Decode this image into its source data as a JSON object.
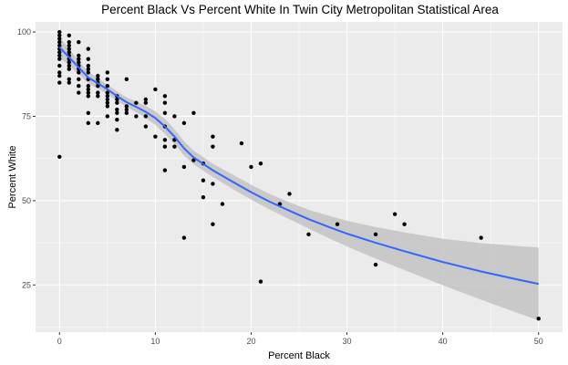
{
  "chart_data": {
    "type": "scatter",
    "title": "Percent Black Vs Percent White In Twin City Metropolitan Statistical Area",
    "xlabel": "Percent Black",
    "ylabel": "Percent White",
    "xlim": [
      -2.5,
      52.5
    ],
    "ylim": [
      11,
      103
    ],
    "x_ticks": [
      0,
      10,
      20,
      30,
      40,
      50
    ],
    "y_ticks": [
      25,
      50,
      75,
      100
    ],
    "grid": true,
    "colors": {
      "panel": "#ebebeb",
      "grid_major": "#ffffff",
      "point": "#000000",
      "smooth_line": "#3366ff",
      "ci_band": "#c3c3c3"
    },
    "points": [
      [
        0,
        100
      ],
      [
        0,
        99
      ],
      [
        0,
        98
      ],
      [
        0,
        97
      ],
      [
        0,
        96
      ],
      [
        0,
        95
      ],
      [
        0,
        94
      ],
      [
        0,
        93
      ],
      [
        0,
        92
      ],
      [
        0,
        90
      ],
      [
        0,
        88
      ],
      [
        0,
        87
      ],
      [
        0,
        85
      ],
      [
        0,
        63
      ],
      [
        1,
        99
      ],
      [
        1,
        97
      ],
      [
        1,
        96
      ],
      [
        1,
        95
      ],
      [
        1,
        94
      ],
      [
        1,
        93
      ],
      [
        1,
        92
      ],
      [
        1,
        91
      ],
      [
        1,
        90
      ],
      [
        1,
        89
      ],
      [
        1,
        86
      ],
      [
        1,
        85
      ],
      [
        2,
        97
      ],
      [
        2,
        93
      ],
      [
        2,
        92
      ],
      [
        2,
        91
      ],
      [
        2,
        90
      ],
      [
        2,
        89
      ],
      [
        2,
        88
      ],
      [
        2,
        86
      ],
      [
        2,
        84
      ],
      [
        2,
        82
      ],
      [
        3,
        95
      ],
      [
        3,
        92
      ],
      [
        3,
        90
      ],
      [
        3,
        89
      ],
      [
        3,
        88
      ],
      [
        3,
        86
      ],
      [
        3,
        84
      ],
      [
        3,
        83
      ],
      [
        3,
        82
      ],
      [
        3,
        81
      ],
      [
        3,
        76
      ],
      [
        3,
        73
      ],
      [
        4,
        87
      ],
      [
        4,
        86
      ],
      [
        4,
        85
      ],
      [
        4,
        84
      ],
      [
        4,
        82
      ],
      [
        4,
        81
      ],
      [
        4,
        73
      ],
      [
        5,
        88
      ],
      [
        5,
        86
      ],
      [
        5,
        84
      ],
      [
        5,
        82
      ],
      [
        5,
        81
      ],
      [
        5,
        80
      ],
      [
        5,
        79
      ],
      [
        5,
        78
      ],
      [
        5,
        75
      ],
      [
        6,
        81
      ],
      [
        6,
        80
      ],
      [
        6,
        79
      ],
      [
        6,
        77
      ],
      [
        6,
        76
      ],
      [
        6,
        74
      ],
      [
        6,
        71
      ],
      [
        7,
        86
      ],
      [
        7,
        78
      ],
      [
        7,
        77
      ],
      [
        7,
        76
      ],
      [
        8,
        79
      ],
      [
        8,
        75
      ],
      [
        9,
        80
      ],
      [
        9,
        79
      ],
      [
        9,
        75
      ],
      [
        9,
        72
      ],
      [
        10,
        83
      ],
      [
        10,
        69
      ],
      [
        11,
        81
      ],
      [
        11,
        79
      ],
      [
        11,
        76
      ],
      [
        11,
        72
      ],
      [
        11,
        68
      ],
      [
        11,
        66
      ],
      [
        11,
        59
      ],
      [
        12,
        75
      ],
      [
        12,
        68
      ],
      [
        12,
        66
      ],
      [
        13,
        73
      ],
      [
        13,
        60
      ],
      [
        13,
        39
      ],
      [
        14,
        76
      ],
      [
        14,
        62
      ],
      [
        15,
        61
      ],
      [
        15,
        56
      ],
      [
        15,
        51
      ],
      [
        16,
        69
      ],
      [
        16,
        66
      ],
      [
        16,
        55
      ],
      [
        16,
        43
      ],
      [
        17,
        49
      ],
      [
        19,
        67
      ],
      [
        20,
        60
      ],
      [
        21,
        61
      ],
      [
        21,
        26
      ],
      [
        23,
        49
      ],
      [
        24,
        52
      ],
      [
        26,
        40
      ],
      [
        29,
        43
      ],
      [
        33,
        40
      ],
      [
        33,
        31
      ],
      [
        35,
        46
      ],
      [
        36,
        43
      ],
      [
        44,
        39
      ],
      [
        50,
        15
      ]
    ],
    "smooth": {
      "x": [
        0,
        1,
        2,
        3,
        4,
        5,
        6,
        7,
        8,
        9,
        10,
        11,
        12,
        13,
        14,
        16,
        18,
        20,
        22,
        24,
        26,
        28,
        30,
        33,
        36,
        40,
        44,
        48,
        50
      ],
      "y": [
        95.5,
        92.5,
        89.5,
        86.5,
        84.8,
        83,
        81,
        79.2,
        77.8,
        76.3,
        74.5,
        72,
        69,
        65.5,
        62.8,
        59,
        55.7,
        52.5,
        49.6,
        47,
        44.5,
        42.3,
        40.2,
        37.5,
        35,
        31.8,
        29,
        26.5,
        25.3
      ],
      "lower": [
        92.5,
        90,
        87.5,
        84.8,
        83.2,
        81.6,
        79.6,
        77.8,
        76.2,
        74.5,
        72.5,
        69.8,
        66.8,
        63.4,
        60.8,
        57,
        53.6,
        50.3,
        47.3,
        44.5,
        41.7,
        39,
        36.4,
        32.8,
        29.4,
        24.9,
        20.6,
        16.5,
        14.5
      ],
      "upper": [
        98.5,
        95,
        91.5,
        88.2,
        86.4,
        84.4,
        82.4,
        80.6,
        79.4,
        78.1,
        76.5,
        74.2,
        71.2,
        67.6,
        64.8,
        61,
        57.8,
        54.7,
        51.9,
        49.5,
        47.3,
        45.6,
        44,
        42.2,
        40.6,
        38.7,
        37.4,
        36.5,
        36.1
      ]
    }
  }
}
